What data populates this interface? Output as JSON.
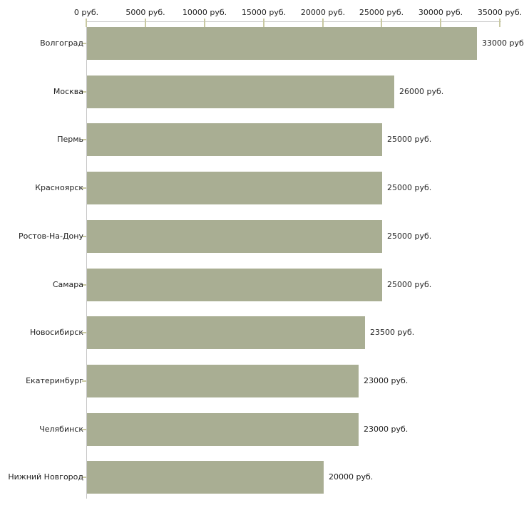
{
  "chart_data": {
    "type": "bar",
    "orientation": "horizontal",
    "title": "",
    "xlabel": "",
    "ylabel": "",
    "unit": "руб.",
    "grid": false,
    "legend": "none",
    "categories": [
      "Волгоград",
      "Москва",
      "Пермь",
      "Красноярск",
      "Ростов-На-Дону",
      "Самара",
      "Новосибирск",
      "Екатеринбург",
      "Челябинск",
      "Нижний Новгород"
    ],
    "values": [
      33000,
      26000,
      25000,
      25000,
      25000,
      25000,
      23500,
      23000,
      23000,
      20000
    ],
    "value_labels": [
      "33000 руб",
      "26000 руб.",
      "25000 руб.",
      "25000 руб.",
      "25000 руб.",
      "25000 руб.",
      "23500 руб.",
      "23000 руб.",
      "23000 руб.",
      "20000 руб."
    ],
    "x_axis": {
      "position": "top",
      "range": [
        0,
        35000
      ],
      "ticks": [
        0,
        5000,
        10000,
        15000,
        20000,
        25000,
        30000,
        35000
      ],
      "tick_labels": [
        "0 руб.",
        "5000 руб.",
        "10000 руб.",
        "15000 руб.",
        "20000 руб.",
        "25000 руб.",
        "30000 руб.",
        "35000 руб."
      ]
    },
    "colors": {
      "bar": "#a9ae93",
      "axis_line": "#c6c6c6",
      "tick_mark": "#c9c9a2",
      "text": "#1f1f1f",
      "background": "#ffffff"
    }
  }
}
